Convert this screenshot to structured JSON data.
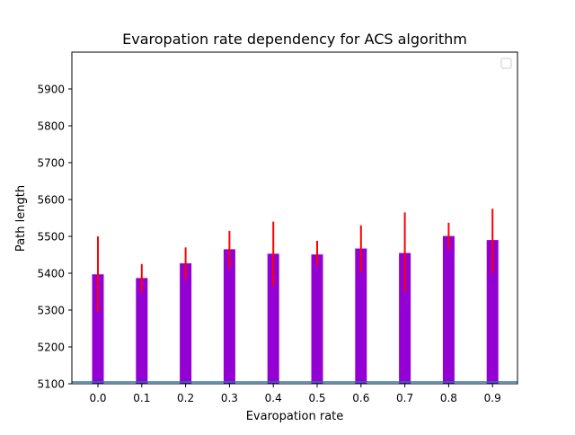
{
  "chart_data": {
    "type": "bar",
    "title": "Evaropation rate dependency for ACS algorithm",
    "xlabel": "Evaropation rate",
    "ylabel": "Path length",
    "categories": [
      "0.0",
      "0.1",
      "0.2",
      "0.3",
      "0.4",
      "0.5",
      "0.6",
      "0.7",
      "0.8",
      "0.9"
    ],
    "values": [
      5397,
      5387,
      5427,
      5465,
      5453,
      5451,
      5467,
      5455,
      5501,
      5490
    ],
    "error_low": [
      5295,
      5348,
      5385,
      5413,
      5365,
      5420,
      5402,
      5350,
      5465,
      5400
    ],
    "error_high": [
      5500,
      5425,
      5470,
      5515,
      5540,
      5488,
      5530,
      5565,
      5537,
      5575
    ],
    "reference_line": 5105,
    "ylim": [
      5100,
      6000
    ],
    "yticks": [
      5100,
      5200,
      5300,
      5400,
      5500,
      5600,
      5700,
      5800,
      5900
    ],
    "grid": false,
    "legend": "top-right",
    "colors": {
      "bar": "#9400d3",
      "error": "#ff0000",
      "reference": "#1f77b4",
      "axis": "#000000"
    }
  }
}
